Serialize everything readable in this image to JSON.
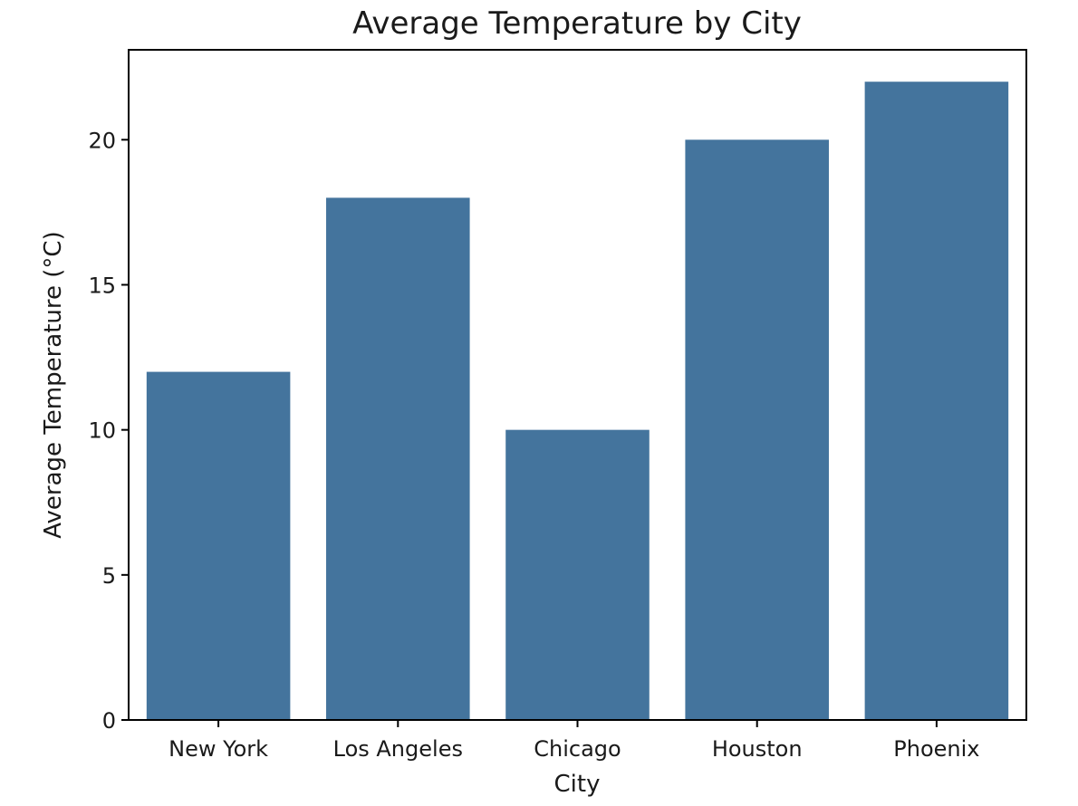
{
  "chart_data": {
    "type": "bar",
    "title": "Average Temperature by City",
    "xlabel": "City",
    "ylabel": "Average Temperature (°C)",
    "categories": [
      "New York",
      "Los Angeles",
      "Chicago",
      "Houston",
      "Phoenix"
    ],
    "values": [
      12,
      18,
      10,
      20,
      22
    ],
    "ylim": [
      0,
      23.1
    ],
    "yticks": [
      0,
      5,
      10,
      15,
      20
    ],
    "grid": false,
    "legend": "none",
    "colors": {
      "bar": "#44749d",
      "axes": "#000000",
      "text": "#1a1a1a"
    }
  }
}
